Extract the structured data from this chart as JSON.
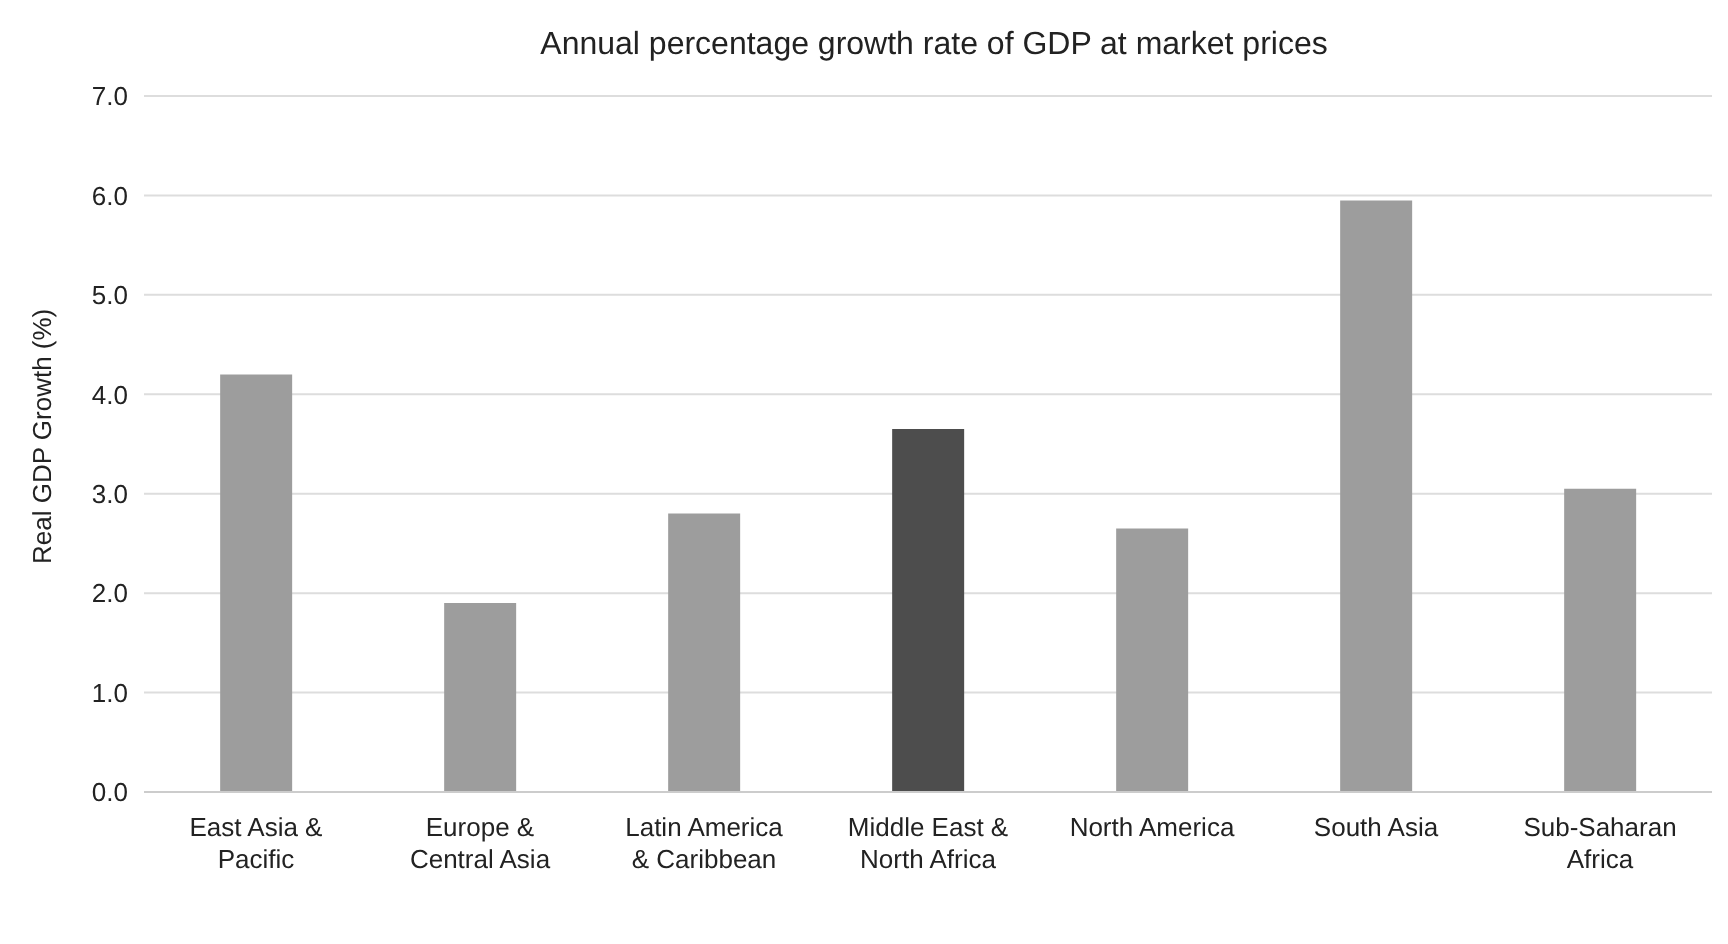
{
  "chart_data": {
    "type": "bar",
    "title": "Annual percentage growth rate of GDP at market prices",
    "ylabel": "Real GDP Growth (%)",
    "categories": [
      "East Asia & Pacific",
      "Europe & Central Asia",
      "Latin America & Caribbean",
      "Middle East & North Africa",
      "North America",
      "South Asia",
      "Sub-Saharan Africa"
    ],
    "values": [
      4.2,
      1.9,
      2.8,
      3.65,
      2.65,
      5.95,
      3.05
    ],
    "colors": [
      "#9d9d9d",
      "#9d9d9d",
      "#9d9d9d",
      "#4d4d4d",
      "#9d9d9d",
      "#9d9d9d",
      "#9d9d9d"
    ],
    "ylim": [
      0,
      7
    ],
    "yticks": [
      {
        "value": 0,
        "label": "0.0"
      },
      {
        "value": 1,
        "label": "1.0"
      },
      {
        "value": 2,
        "label": "2.0"
      },
      {
        "value": 3,
        "label": "3.0"
      },
      {
        "value": 4,
        "label": "4.0"
      },
      {
        "value": 5,
        "label": "5.0"
      },
      {
        "value": 6,
        "label": "6.0"
      },
      {
        "value": 7,
        "label": "7.0"
      }
    ],
    "grid": "y",
    "legend": false
  }
}
